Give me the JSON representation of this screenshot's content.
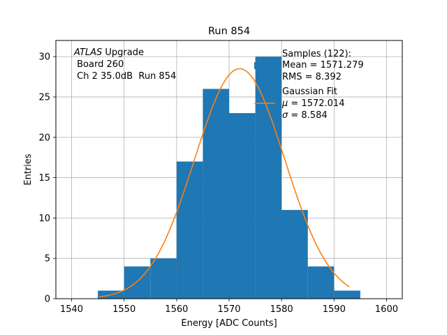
{
  "chart_data": {
    "type": "bar",
    "title": "Run 854",
    "xlabel": "Energy [ADC Counts]",
    "ylabel": "Entries",
    "xlim": [
      1537,
      1603
    ],
    "ylim": [
      0,
      32
    ],
    "xticks": [
      1540,
      1550,
      1560,
      1570,
      1580,
      1590,
      1600
    ],
    "yticks": [
      0,
      5,
      10,
      15,
      20,
      25,
      30
    ],
    "grid": true,
    "bins": [
      {
        "x0": 1545,
        "x1": 1550,
        "count": 1
      },
      {
        "x0": 1550,
        "x1": 1555,
        "count": 4
      },
      {
        "x0": 1555,
        "x1": 1560,
        "count": 5
      },
      {
        "x0": 1560,
        "x1": 1565,
        "count": 17
      },
      {
        "x0": 1565,
        "x1": 1570,
        "count": 26
      },
      {
        "x0": 1570,
        "x1": 1575,
        "count": 23
      },
      {
        "x0": 1575,
        "x1": 1580,
        "count": 30
      },
      {
        "x0": 1580,
        "x1": 1585,
        "count": 11
      },
      {
        "x0": 1585,
        "x1": 1590,
        "count": 4
      },
      {
        "x0": 1590,
        "x1": 1595,
        "count": 1
      }
    ],
    "fit": {
      "mu": 1572.014,
      "sigma": 8.584,
      "amplitude": 28.5,
      "x_range": [
        1545.2,
        1592.9
      ]
    },
    "colors": {
      "bars": "#1f77b4",
      "fit": "#ff7f0e",
      "grid": "#b0b0b0"
    },
    "annotation": {
      "atlas": "ATLAS",
      "upgrade": " Upgrade",
      "board": " Board 260",
      "channel": " Ch 2 35.0dB  Run 854"
    },
    "legend": {
      "placement": "top-right",
      "samples_line1": "Samples (122):",
      "samples_line2": "Mean = 1571.279",
      "samples_line3": "RMS = 8.392",
      "fit_line1": "Gaussian Fit",
      "fit_mu_symbol": "μ",
      "fit_mu_value": " = 1572.014",
      "fit_sigma_symbol": "σ",
      "fit_sigma_value": " = 8.584"
    }
  }
}
